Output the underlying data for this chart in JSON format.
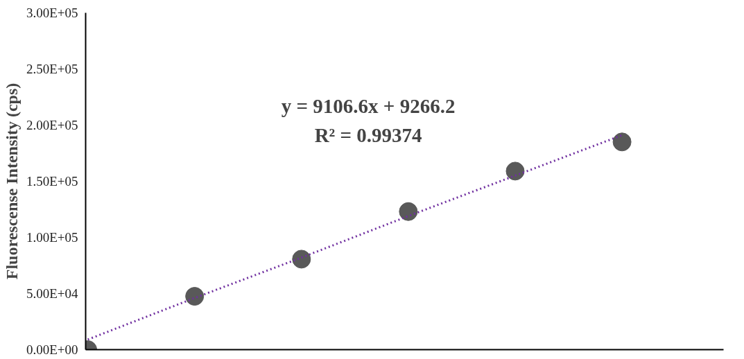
{
  "chart_data": {
    "type": "scatter",
    "ylabel": "Fluorescense Intensity (cps)",
    "categories": [
      null,
      null,
      null,
      null,
      null,
      null
    ],
    "series": [
      {
        "color": "#595959",
        "marker": "circle",
        "values": [
          0,
          47500,
          80600,
          123000,
          159000,
          185000
        ]
      },
      {
        "type": "line",
        "color": "#7030a0",
        "line_style": "dotted",
        "marker": "none",
        "values": [
          9000,
          46000,
          82000,
          119000,
          155000,
          191000
        ]
      }
    ],
    "ylim": [
      0,
      300000
    ],
    "yticks": [
      {
        "value": 0,
        "label": "0.00E+00"
      },
      {
        "value": 50000,
        "label": "5.00E+04"
      },
      {
        "value": 100000,
        "label": "1.00E+05"
      },
      {
        "value": 150000,
        "label": "1.50E+05"
      },
      {
        "value": 200000,
        "label": "2.00E+05"
      },
      {
        "value": 250000,
        "label": "2.50E+05"
      },
      {
        "value": 300000,
        "label": "3.00E+05"
      }
    ],
    "tick_labels": "y",
    "grid": false,
    "annotations": [
      "y = 9106.6x + 9266.2",
      "R² = 0.99374"
    ]
  }
}
